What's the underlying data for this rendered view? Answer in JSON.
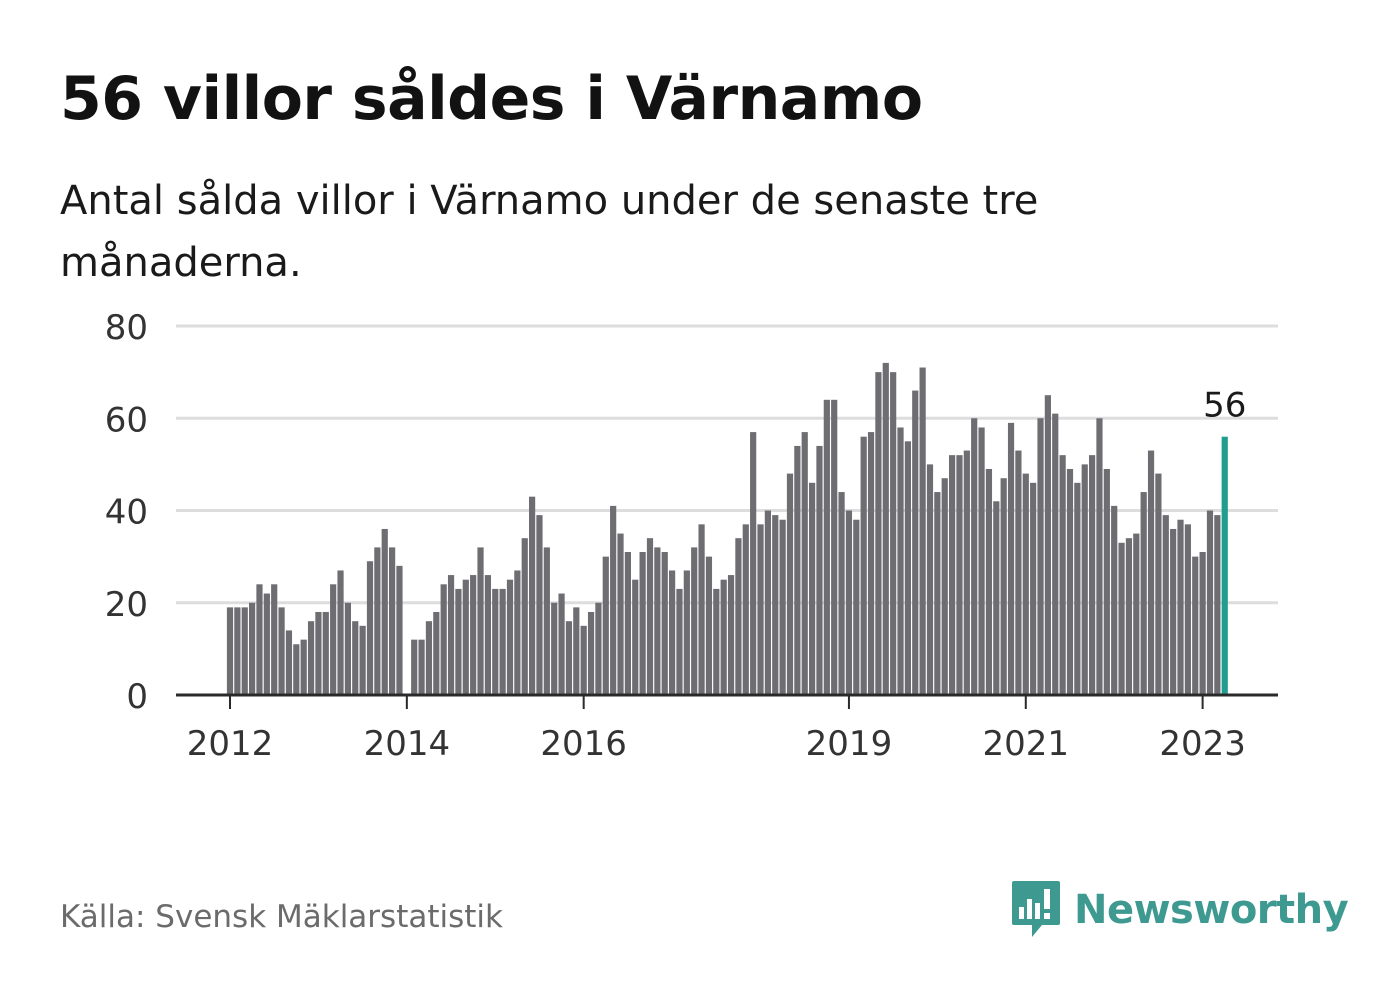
{
  "title": "56 villor såldes i Värnamo",
  "subtitle": "Antal sålda villor i Värnamo under de senaste tre månaderna.",
  "source": "Källa: Svensk Mäklarstatistik",
  "brand": {
    "name": "Newsworthy",
    "icon": "newsworthy-logo-icon",
    "color": "#3e9a90"
  },
  "colors": {
    "bar": "#6e6d72",
    "highlight": "#1f9e8f",
    "grid": "#dddddd",
    "axis": "#2a2a2a"
  },
  "chart_data": {
    "type": "bar",
    "title": "56 villor såldes i Värnamo",
    "xlabel": "",
    "ylabel": "",
    "ylim": [
      0,
      80
    ],
    "y_ticks": [
      0,
      20,
      40,
      60,
      80
    ],
    "x_ticks": [
      "2012",
      "2014",
      "2016",
      "2019",
      "2021",
      "2023"
    ],
    "grid": true,
    "series": [
      {
        "x": [
          "2012-01",
          "2012-02",
          "2012-03",
          "2012-04",
          "2012-05",
          "2012-06",
          "2012-07",
          "2012-08",
          "2012-09",
          "2012-10",
          "2012-11",
          "2012-12",
          "2013-01",
          "2013-02",
          "2013-03",
          "2013-04",
          "2013-05",
          "2013-06",
          "2013-07",
          "2013-08",
          "2013-09",
          "2013-10",
          "2013-11",
          "2013-12",
          "2014-02",
          "2014-03",
          "2014-04",
          "2014-05",
          "2014-06",
          "2014-07",
          "2014-08",
          "2014-09",
          "2014-10",
          "2014-11",
          "2014-12",
          "2015-01",
          "2015-02",
          "2015-03",
          "2015-04",
          "2015-05",
          "2015-06",
          "2015-07",
          "2015-08",
          "2015-09",
          "2015-10",
          "2015-11",
          "2015-12",
          "2016-01",
          "2016-02",
          "2016-03",
          "2016-04",
          "2016-05",
          "2016-06",
          "2016-07",
          "2016-08",
          "2016-09",
          "2016-10",
          "2016-11",
          "2016-12",
          "2017-01",
          "2017-02",
          "2017-03",
          "2017-04",
          "2017-05",
          "2017-06",
          "2017-07",
          "2017-08",
          "2017-09",
          "2017-10",
          "2017-11",
          "2017-12",
          "2018-01",
          "2018-02",
          "2018-03",
          "2018-04",
          "2018-05",
          "2018-06",
          "2018-07",
          "2018-08",
          "2018-09",
          "2018-10",
          "2018-11",
          "2018-12",
          "2019-01",
          "2019-02",
          "2019-03",
          "2019-04",
          "2019-05",
          "2019-06",
          "2019-07",
          "2019-08",
          "2019-09",
          "2019-10",
          "2019-11",
          "2019-12",
          "2020-01",
          "2020-02",
          "2020-03",
          "2020-04",
          "2020-05",
          "2020-06",
          "2020-07",
          "2020-08",
          "2020-09",
          "2020-10",
          "2020-11",
          "2020-12",
          "2021-01",
          "2021-02",
          "2021-03",
          "2021-04",
          "2021-05",
          "2021-06",
          "2021-07",
          "2021-08",
          "2021-09",
          "2021-10",
          "2021-11",
          "2021-12",
          "2022-01",
          "2022-02",
          "2022-03",
          "2022-04",
          "2022-05",
          "2022-06",
          "2022-07",
          "2022-08",
          "2022-09",
          "2022-10",
          "2022-11",
          "2022-12",
          "2023-01",
          "2023-02",
          "2023-03"
        ],
        "values": [
          19,
          19,
          19,
          20,
          24,
          22,
          24,
          19,
          14,
          11,
          12,
          16,
          18,
          18,
          24,
          27,
          20,
          16,
          15,
          29,
          32,
          36,
          32,
          28,
          12,
          12,
          16,
          18,
          24,
          26,
          23,
          25,
          26,
          32,
          26,
          23,
          23,
          25,
          27,
          34,
          43,
          39,
          32,
          20,
          22,
          16,
          19,
          15,
          18,
          20,
          30,
          41,
          35,
          31,
          25,
          31,
          34,
          32,
          31,
          27,
          23,
          27,
          32,
          37,
          30,
          23,
          25,
          26,
          34,
          37,
          57,
          37,
          40,
          39,
          38,
          48,
          54,
          57,
          46,
          54,
          64,
          64,
          44,
          40,
          38,
          56,
          57,
          70,
          72,
          70,
          58,
          55,
          66,
          71,
          50,
          44,
          47,
          52,
          52,
          53,
          60,
          58,
          49,
          42,
          47,
          59,
          53,
          48,
          46,
          60,
          65,
          61,
          52,
          49,
          46,
          50,
          52,
          60,
          49,
          41,
          33,
          34,
          35,
          44,
          53,
          48,
          39,
          36,
          38,
          37,
          30,
          31,
          40,
          39
        ]
      }
    ],
    "latest": {
      "x": "2023-04",
      "value": 56,
      "label": "56"
    }
  }
}
